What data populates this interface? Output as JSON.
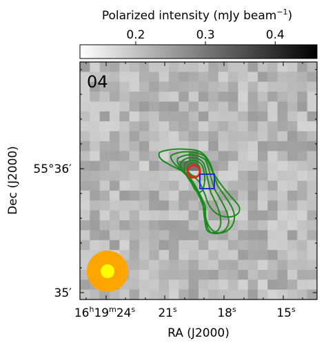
{
  "colorbar": {
    "label": "Polarized intensity (mJy beam",
    "label_exp": "−1",
    "label_close": ")",
    "vmin": 0.12,
    "vmax": 0.46,
    "ticks": [
      {
        "value": 0.2,
        "label": "0.2"
      },
      {
        "value": 0.3,
        "label": "0.3"
      },
      {
        "value": 0.4,
        "label": "0.4"
      }
    ]
  },
  "panel_label": "04",
  "chart_data": {
    "type": "heatmap",
    "title": "",
    "xlabel": "RA (J2000)",
    "ylabel": "Dec (J2000)",
    "x_ticks": [
      {
        "h": "16",
        "m": "19",
        "s": "24",
        "ra_sec": 24
      },
      {
        "s": "21",
        "ra_sec": 21
      },
      {
        "s": "18",
        "ra_sec": 18
      },
      {
        "s": "15",
        "ra_sec": 15
      }
    ],
    "y_ticks": [
      {
        "label": "55°36′",
        "dec_arcmin": 36
      },
      {
        "label": "35′",
        "dec_arcmin": 35
      }
    ],
    "grid": false,
    "contour_color": "#1a8a1a",
    "markers": [
      {
        "shape": "circle",
        "color": "#e8251a",
        "ra_sec": 19.6,
        "dec_arcmin": 35.98
      },
      {
        "shape": "square",
        "color": "#1f2fd6",
        "ra_sec": 18.9,
        "dec_arcmin": 35.92
      }
    ],
    "beam": {
      "outer_color": "#ffa500",
      "inner_color": "#ffff00"
    }
  }
}
